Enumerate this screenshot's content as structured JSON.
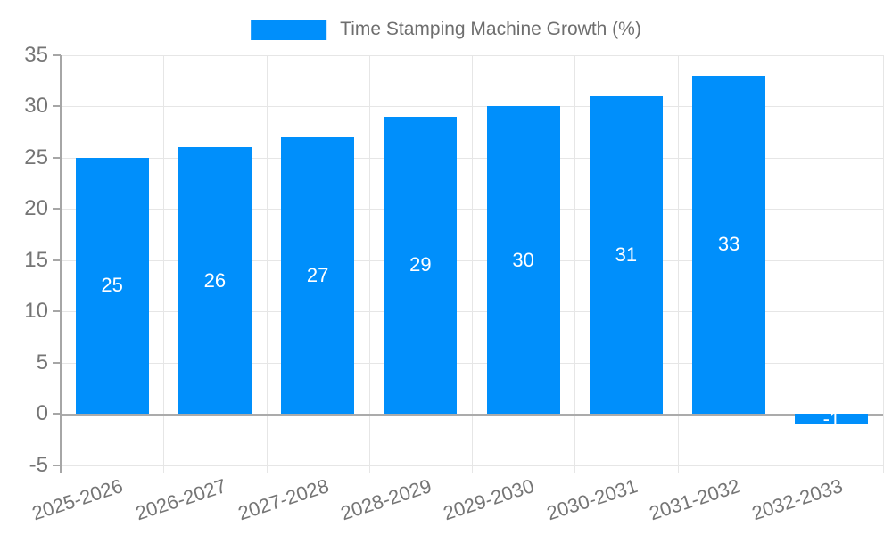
{
  "chart_data": {
    "type": "bar",
    "title": "Time Stamping Machine Growth (%)",
    "categories": [
      "2025-2026",
      "2026-2027",
      "2027-2028",
      "2028-2029",
      "2029-2030",
      "2030-2031",
      "2031-2032",
      "2032-2033"
    ],
    "values": [
      25,
      26,
      27,
      29,
      30,
      31,
      33,
      -1
    ],
    "bar_labels": [
      "25",
      "26",
      "27",
      "29",
      "30",
      "31",
      "33",
      "-1"
    ],
    "ylim": [
      -5,
      35
    ],
    "ytick_step": 5,
    "ytick_labels": [
      "35",
      "30",
      "25",
      "20",
      "15",
      "10",
      "5",
      "0",
      "-5"
    ],
    "grid": true,
    "legend_position": "top",
    "colors": {
      "bar": "#008FFB",
      "bar_label": "#ffffff",
      "grid": "#e6e6e6",
      "axis": "#a6a6a6",
      "zero_line": "#ababab",
      "tick_text": "#757575",
      "title_text": "#6e6e6e",
      "background": "#ffffff"
    }
  }
}
